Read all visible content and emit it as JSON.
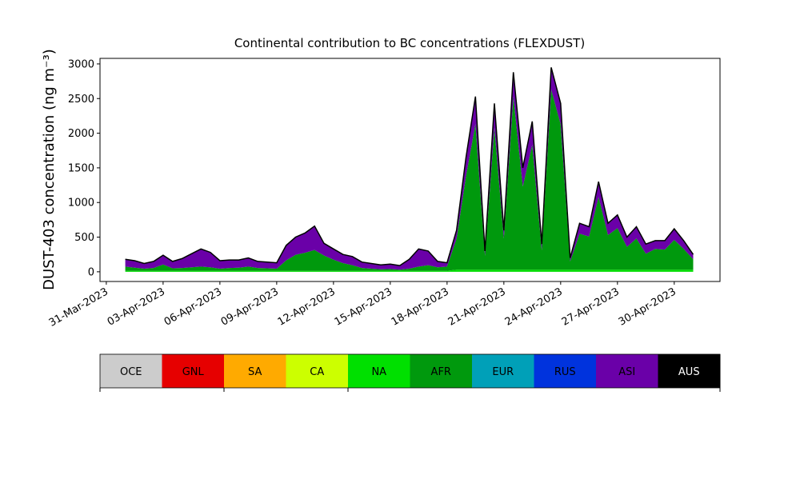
{
  "chart_data": {
    "type": "stacked-area",
    "title": "Continental contribution to BC concentrations (FLEXDUST)",
    "y_label": "DUST-403 concentration (ng m⁻³)",
    "x": [
      "2023-04-01T00:00",
      "2023-04-01T12:00",
      "2023-04-02T00:00",
      "2023-04-02T12:00",
      "2023-04-03T00:00",
      "2023-04-03T12:00",
      "2023-04-04T00:00",
      "2023-04-04T12:00",
      "2023-04-05T00:00",
      "2023-04-05T12:00",
      "2023-04-06T00:00",
      "2023-04-06T12:00",
      "2023-04-07T00:00",
      "2023-04-07T12:00",
      "2023-04-08T00:00",
      "2023-04-08T12:00",
      "2023-04-09T00:00",
      "2023-04-09T12:00",
      "2023-04-10T00:00",
      "2023-04-10T12:00",
      "2023-04-11T00:00",
      "2023-04-11T12:00",
      "2023-04-12T00:00",
      "2023-04-12T12:00",
      "2023-04-13T00:00",
      "2023-04-13T12:00",
      "2023-04-14T00:00",
      "2023-04-14T12:00",
      "2023-04-15T00:00",
      "2023-04-15T12:00",
      "2023-04-16T00:00",
      "2023-04-16T12:00",
      "2023-04-17T00:00",
      "2023-04-17T12:00",
      "2023-04-18T00:00",
      "2023-04-18T12:00",
      "2023-04-19T00:00",
      "2023-04-19T12:00",
      "2023-04-20T00:00",
      "2023-04-20T12:00",
      "2023-04-21T00:00",
      "2023-04-21T12:00",
      "2023-04-22T00:00",
      "2023-04-22T12:00",
      "2023-04-23T00:00",
      "2023-04-23T12:00",
      "2023-04-24T00:00",
      "2023-04-24T12:00",
      "2023-04-25T00:00",
      "2023-04-25T12:00",
      "2023-04-26T00:00",
      "2023-04-26T12:00",
      "2023-04-27T00:00",
      "2023-04-27T12:00",
      "2023-04-28T00:00",
      "2023-04-28T12:00",
      "2023-04-29T00:00",
      "2023-04-29T12:00",
      "2023-04-30T00:00",
      "2023-04-30T12:00",
      "2023-05-01T00:00"
    ],
    "series": [
      {
        "name": "NA",
        "color": "#00dd00",
        "values": [
          15,
          15,
          15,
          15,
          15,
          15,
          15,
          15,
          15,
          15,
          15,
          15,
          15,
          15,
          15,
          15,
          15,
          15,
          15,
          15,
          15,
          15,
          15,
          15,
          15,
          15,
          15,
          15,
          15,
          15,
          15,
          15,
          15,
          15,
          15,
          30,
          30,
          30,
          30,
          30,
          30,
          30,
          30,
          30,
          30,
          30,
          30,
          30,
          30,
          30,
          30,
          30,
          30,
          30,
          30,
          30,
          30,
          30,
          30,
          30,
          30
        ]
      },
      {
        "name": "AFR",
        "color": "#00990d",
        "values": [
          60,
          45,
          30,
          40,
          90,
          35,
          40,
          50,
          60,
          50,
          30,
          40,
          45,
          60,
          40,
          35,
          30,
          150,
          230,
          260,
          300,
          220,
          160,
          110,
          80,
          40,
          30,
          20,
          25,
          15,
          30,
          60,
          80,
          50,
          60,
          450,
          1350,
          2100,
          200,
          2050,
          450,
          2500,
          1200,
          1800,
          280,
          2600,
          2100,
          120,
          520,
          480,
          1050,
          500,
          600,
          330,
          450,
          230,
          300,
          290,
          430,
          300,
          150
        ]
      },
      {
        "name": "ASI",
        "color": "#6a00a8",
        "values": [
          105,
          100,
          75,
          95,
          135,
          100,
          135,
          195,
          255,
          215,
          115,
          115,
          110,
          125,
          95,
          90,
          85,
          215,
          255,
          285,
          345,
          175,
          155,
          125,
          125,
          85,
          75,
          65,
          70,
          60,
          135,
          255,
          205,
          85,
          55,
          120,
          270,
          400,
          70,
          350,
          120,
          350,
          270,
          340,
          90,
          320,
          300,
          50,
          150,
          140,
          220,
          170,
          190,
          140,
          170,
          140,
          120,
          130,
          160,
          120,
          70
        ]
      }
    ],
    "outline_color": "#000000",
    "xlim": [
      "2023-03-30T16:00",
      "2023-05-02T10:00"
    ],
    "xticks": [
      {
        "value": "2023-03-31T00:00",
        "label": "31-Mar-2023"
      },
      {
        "value": "2023-04-03T00:00",
        "label": "03-Apr-2023"
      },
      {
        "value": "2023-04-06T00:00",
        "label": "06-Apr-2023"
      },
      {
        "value": "2023-04-09T00:00",
        "label": "09-Apr-2023"
      },
      {
        "value": "2023-04-12T00:00",
        "label": "12-Apr-2023"
      },
      {
        "value": "2023-04-15T00:00",
        "label": "15-Apr-2023"
      },
      {
        "value": "2023-04-18T00:00",
        "label": "18-Apr-2023"
      },
      {
        "value": "2023-04-21T00:00",
        "label": "21-Apr-2023"
      },
      {
        "value": "2023-04-24T00:00",
        "label": "24-Apr-2023"
      },
      {
        "value": "2023-04-27T00:00",
        "label": "27-Apr-2023"
      },
      {
        "value": "2023-04-30T00:00",
        "label": "30-Apr-2023"
      }
    ],
    "ylim": [
      -140,
      3080
    ],
    "yticks": [
      0,
      500,
      1000,
      1500,
      2000,
      2500,
      3000
    ],
    "colorbar": {
      "labels": [
        "OCE",
        "GNL",
        "SA",
        "CA",
        "NA",
        "AFR",
        "EUR",
        "RUS",
        "ASI",
        "AUS"
      ],
      "colors": [
        "#cccccc",
        "#e60000",
        "#ffaa00",
        "#ccff00",
        "#00e000",
        "#00990d",
        "#00a0b8",
        "#0033dd",
        "#6a00a8",
        "#000000"
      ]
    }
  }
}
